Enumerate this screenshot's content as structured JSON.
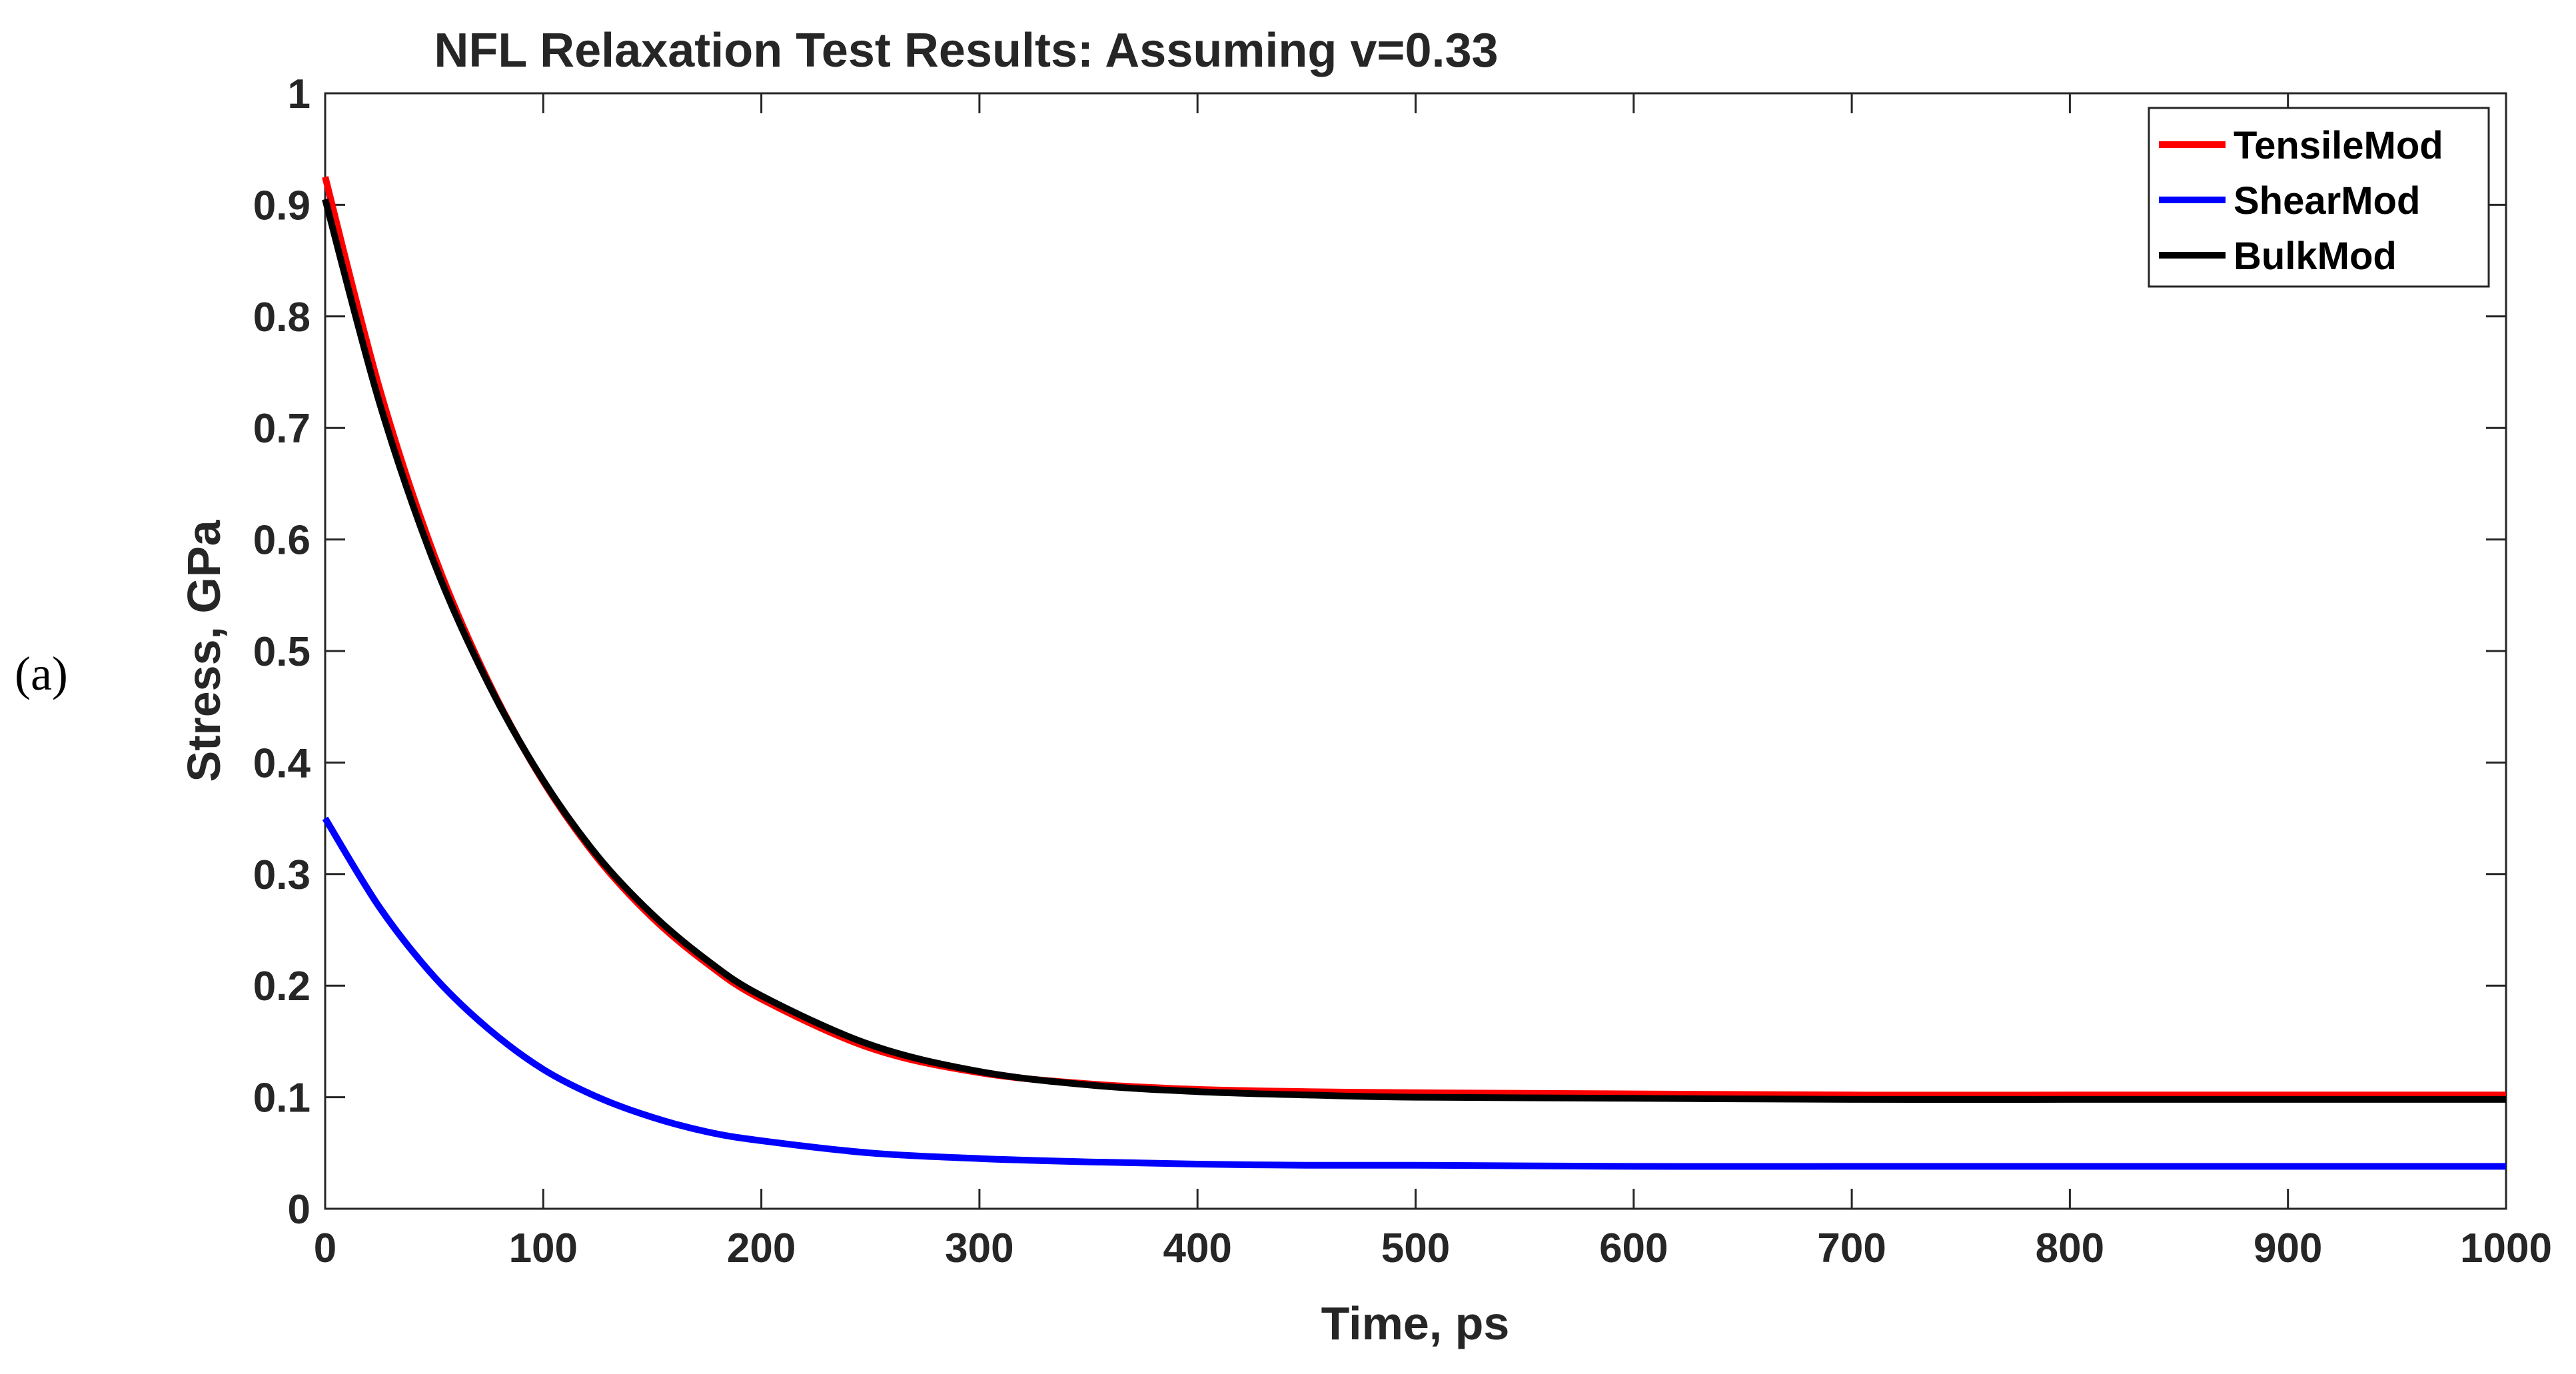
{
  "panel_label": "(a)",
  "chart_data": {
    "type": "line",
    "title": "NFL Relaxation Test Results: Assuming v=0.33",
    "xlabel": "Time, ps",
    "ylabel": "Stress, GPa",
    "xlim": [
      0,
      1000
    ],
    "ylim": [
      0,
      1
    ],
    "xticks": [
      0,
      100,
      200,
      300,
      400,
      500,
      600,
      700,
      800,
      900,
      1000
    ],
    "yticks": [
      0,
      0.1,
      0.2,
      0.3,
      0.4,
      0.5,
      0.6,
      0.7,
      0.8,
      0.9,
      1
    ],
    "xtick_labels": [
      "0",
      "100",
      "200",
      "300",
      "400",
      "500",
      "600",
      "700",
      "800",
      "900",
      "1000"
    ],
    "ytick_labels": [
      "0",
      "0.1",
      "0.2",
      "0.3",
      "0.4",
      "0.5",
      "0.6",
      "0.7",
      "0.8",
      "0.9",
      "1"
    ],
    "grid": false,
    "legend_position": "top-right",
    "x": [
      0,
      25,
      50,
      75,
      100,
      125,
      150,
      175,
      200,
      250,
      300,
      350,
      400,
      450,
      500,
      600,
      700,
      800,
      900,
      1000
    ],
    "series": [
      {
        "name": "TensileMod",
        "color": "#ff0000",
        "values": [
          0.925,
          0.735,
          0.586,
          0.472,
          0.383,
          0.314,
          0.261,
          0.22,
          0.188,
          0.144,
          0.122,
          0.112,
          0.107,
          0.105,
          0.104,
          0.103,
          0.102,
          0.102,
          0.102,
          0.102
        ]
      },
      {
        "name": "ShearMod",
        "color": "#0000ff",
        "values": [
          0.35,
          0.27,
          0.208,
          0.161,
          0.125,
          0.1,
          0.082,
          0.069,
          0.061,
          0.05,
          0.045,
          0.042,
          0.04,
          0.039,
          0.039,
          0.038,
          0.038,
          0.038,
          0.038,
          0.038
        ]
      },
      {
        "name": "BulkMod",
        "color": "#000000",
        "values": [
          0.905,
          0.722,
          0.579,
          0.47,
          0.384,
          0.316,
          0.264,
          0.223,
          0.191,
          0.147,
          0.123,
          0.111,
          0.105,
          0.102,
          0.1,
          0.099,
          0.098,
          0.098,
          0.098,
          0.098
        ]
      }
    ]
  }
}
